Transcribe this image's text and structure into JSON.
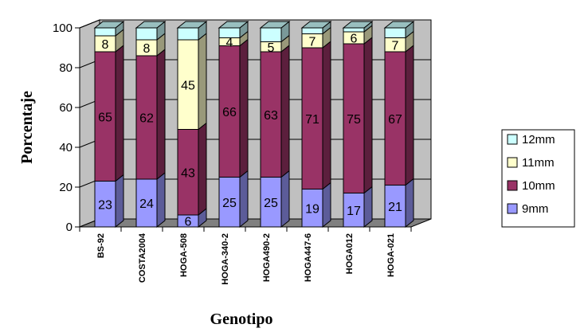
{
  "chart_data": {
    "type": "bar",
    "stacked": true,
    "three_d": true,
    "xlabel": "Genotipo",
    "ylabel": "Porcentaje",
    "ylim": [
      0,
      100
    ],
    "yticks": [
      0,
      20,
      40,
      60,
      80,
      100
    ],
    "grid": true,
    "legend_position": "right",
    "categories": [
      "BS-92",
      "COSTA2004",
      "HOGA-508",
      "HOGA-340-2",
      "HOGA490-2",
      "HOGA447-6",
      "HOGA012",
      "HOGA-021"
    ],
    "series": [
      {
        "name": "9mm",
        "color": "#9999ff",
        "values": [
          23,
          24,
          6,
          25,
          25,
          19,
          17,
          21
        ]
      },
      {
        "name": "10mm",
        "color": "#993366",
        "values": [
          65,
          62,
          43,
          66,
          63,
          71,
          75,
          67
        ]
      },
      {
        "name": "11mm",
        "color": "#ffffcc",
        "values": [
          8,
          8,
          45,
          4,
          5,
          7,
          6,
          7
        ]
      },
      {
        "name": "12mm",
        "color": "#ccffff",
        "values": [
          4,
          6,
          6,
          5,
          7,
          3,
          2,
          5
        ]
      }
    ],
    "data_labels": [
      [
        "23",
        "24",
        "6",
        "25",
        "25",
        "19",
        "17",
        "21"
      ],
      [
        "65",
        "62",
        "43",
        "66",
        "63",
        "71",
        "75",
        "67"
      ],
      [
        "8",
        "8",
        "45",
        "4",
        "5",
        "7",
        "6",
        "7"
      ]
    ],
    "wall_color": "#c0c0c0",
    "floor_color": "#808080"
  }
}
